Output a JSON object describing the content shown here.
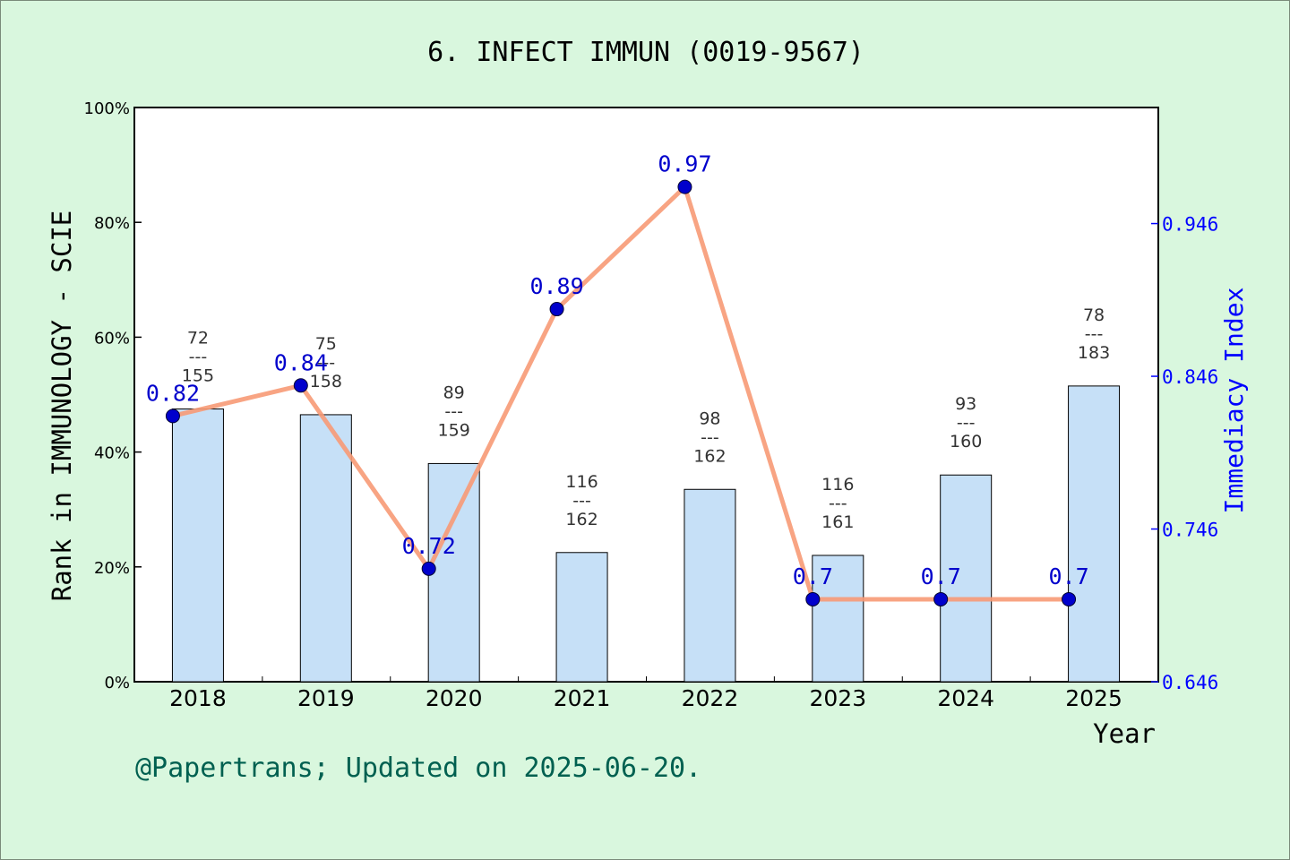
{
  "chart_data": {
    "type": "bar",
    "title": "6. INFECT IMMUN (0019-9567)",
    "xlabel": "Year",
    "ylabel": "Rank in IMMUNOLOGY - SCIE",
    "y2label": "Immediacy Index",
    "categories": [
      "2018",
      "2019",
      "2020",
      "2021",
      "2022",
      "2023",
      "2024",
      "2025"
    ],
    "ylim": [
      0,
      100
    ],
    "y_ticks": [
      "0%",
      "20%",
      "40%",
      "60%",
      "80%",
      "100%"
    ],
    "y2lim": [
      0.646,
      1.022
    ],
    "y2_ticks": [
      "0.646",
      "0.746",
      "0.846",
      "0.946"
    ],
    "bars": {
      "values": [
        47.5,
        46.5,
        38.0,
        22.5,
        33.5,
        22.0,
        36.0,
        51.5
      ],
      "labels": [
        {
          "top": "72",
          "mid": "---",
          "bottom": "155"
        },
        {
          "top": "75",
          "mid": "---",
          "bottom": "158"
        },
        {
          "top": "89",
          "mid": "---",
          "bottom": "159"
        },
        {
          "top": "116",
          "mid": "---",
          "bottom": "162"
        },
        {
          "top": "98",
          "mid": "---",
          "bottom": "162"
        },
        {
          "top": "116",
          "mid": "---",
          "bottom": "161"
        },
        {
          "top": "93",
          "mid": "---",
          "bottom": "160"
        },
        {
          "top": "78",
          "mid": "---",
          "bottom": "183"
        }
      ]
    },
    "line": {
      "x": [
        "2018",
        "2019",
        "2020",
        "2021",
        "2022",
        "2023",
        "2024",
        "2025"
      ],
      "values": [
        0.82,
        0.84,
        0.72,
        0.89,
        0.97,
        0.7,
        0.7,
        0.7
      ],
      "labels": [
        "0.82",
        "0.84",
        "0.72",
        "0.89",
        "0.97",
        "0.7",
        "0.7",
        "0.7"
      ]
    },
    "footer": "@Papertrans; Updated on 2025-06-20.",
    "colors": {
      "background": "#d9f7de",
      "plot_background": "#ffffff",
      "bar_fill": "#c6e0f7",
      "line": "#f79a76",
      "marker": "#0000cc",
      "right_axis": "#0000ff",
      "footer": "#006050"
    },
    "grid": false,
    "legend": "none"
  }
}
